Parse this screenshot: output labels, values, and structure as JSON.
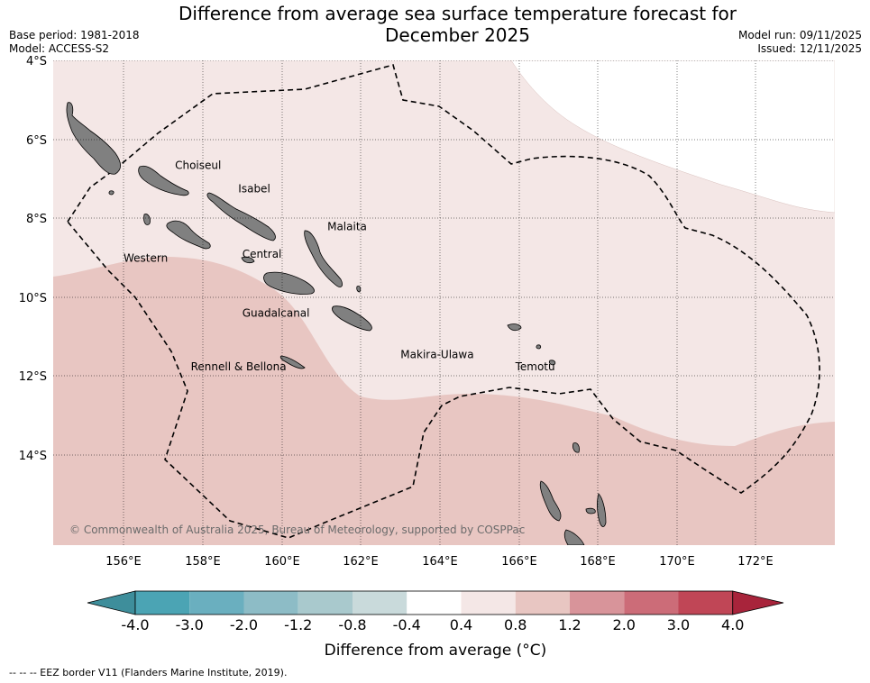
{
  "header": {
    "title_line1": "Difference from average sea surface temperature forecast for",
    "title_line2": "December 2025",
    "base_period": "Base period: 1981-2018",
    "model": "Model: ACCESS-S2",
    "model_run": "Model run: 09/11/2025",
    "issued": "Issued: 12/11/2025"
  },
  "map": {
    "lon_ticks": [
      "156°E",
      "158°E",
      "160°E",
      "162°E",
      "164°E",
      "166°E",
      "168°E",
      "170°E",
      "172°E"
    ],
    "lat_ticks": [
      "4°S",
      "6°S",
      "8°S",
      "10°S",
      "12°S",
      "14°S"
    ],
    "regions": [
      {
        "label": "Choiseul",
        "lon": 157.3,
        "lat": -6.75
      },
      {
        "label": "Isabel",
        "lon": 158.9,
        "lat": -7.35
      },
      {
        "label": "Malaita",
        "lon": 161.15,
        "lat": -8.3
      },
      {
        "label": "Western",
        "lon": 156.0,
        "lat": -9.1
      },
      {
        "label": "Central",
        "lon": 159.0,
        "lat": -9.0
      },
      {
        "label": "Guadalcanal",
        "lon": 159.0,
        "lat": -10.5
      },
      {
        "label": "Makira-Ulawa",
        "lon": 163.0,
        "lat": -11.55
      },
      {
        "label": "Temotu",
        "lon": 165.9,
        "lat": -11.85
      },
      {
        "label": "Rennell & Bellona",
        "lon": 157.7,
        "lat": -11.85
      }
    ],
    "copyright": "© Commonwealth of Australia 2025, Bureau of Meteorology, supported by COSPPac",
    "colors": {
      "anomaly_0_4_0_8": "#f4e7e6",
      "anomaly_0_8_1_2": "#e8c6c2",
      "land": "#808080",
      "eez": "#000000"
    }
  },
  "colorbar": {
    "label": "Difference from average (°C)",
    "ticks": [
      "-4.0",
      "-3.0",
      "-2.0",
      "-1.2",
      "-0.8",
      "-0.4",
      "0.4",
      "0.8",
      "1.2",
      "2.0",
      "3.0",
      "4.0"
    ],
    "colors": [
      "#3e8e9b",
      "#4ba4b4",
      "#6aafbf",
      "#8dbcc6",
      "#a9c9cd",
      "#c9dadb",
      "#ffffff",
      "#f4e7e6",
      "#e8c6c2",
      "#d8949a",
      "#cc6c78",
      "#c04656",
      "#a8243b"
    ]
  },
  "footer": {
    "eez_note": "--  --  -- EEZ border V11 (Flanders Marine Institute, 2019)."
  }
}
